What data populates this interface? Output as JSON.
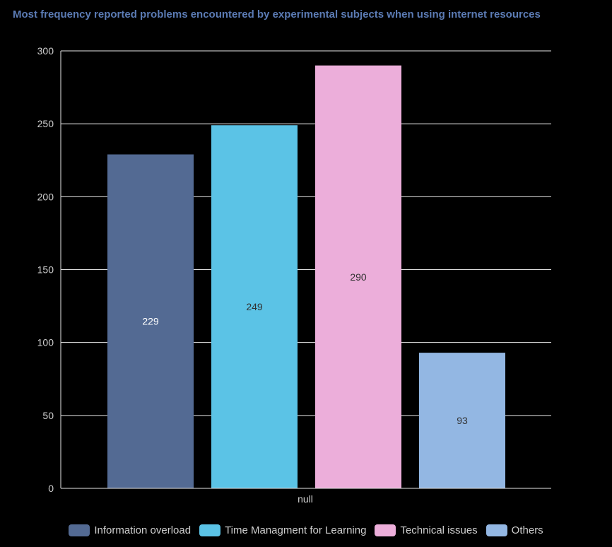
{
  "chart_data": {
    "type": "bar",
    "title": "Most frequency reported problems encountered by experimental subjects when using internet resources",
    "categories": [
      "null"
    ],
    "series": [
      {
        "name": "Information overload",
        "values": [
          229
        ],
        "color": "#536a93"
      },
      {
        "name": "Time Managment for Learning",
        "values": [
          249
        ],
        "color": "#5bc3e6"
      },
      {
        "name": "Technical issues",
        "values": [
          290
        ],
        "color": "#ecaeda"
      },
      {
        "name": "Others",
        "values": [
          93
        ],
        "color": "#93b7e3"
      }
    ],
    "ylim": [
      0,
      300
    ],
    "yticks": [
      "0",
      "50",
      "100",
      "150",
      "200",
      "250",
      "300"
    ],
    "grid": true,
    "legend_position": "bottom"
  }
}
